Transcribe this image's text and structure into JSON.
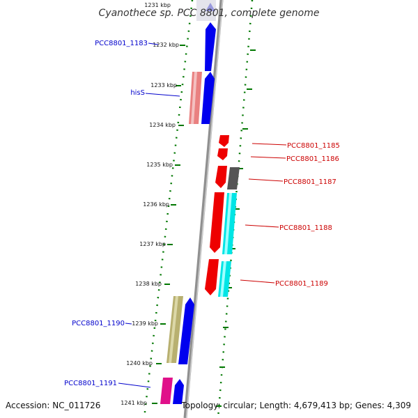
{
  "title": "Cyanothece sp. PCC 8801, complete genome",
  "accession": "Accession: NC_011726",
  "topology": "Topology: circular; Length: 4,679,413 bp; Genes: 4,309",
  "ticks": [
    "1231 kbp",
    "1232 kbp",
    "1233 kbp",
    "1234 kbp",
    "1235 kbp",
    "1236 kbp",
    "1237 kbp",
    "1238 kbp",
    "1239 kbp",
    "1240 kbp",
    "1241 kbp"
  ],
  "labels": {
    "pcc1183": "PCC8801_1183",
    "hiss": "hisS",
    "pcc1185": "PCC8801_1185",
    "pcc1186": "PCC8801_1186",
    "pcc1187": "PCC8801_1187",
    "pcc1188": "PCC8801_1188",
    "pcc1189": "PCC8801_1189",
    "pcc1190": "PCC8801_1190",
    "pcc1191": "PCC8801_1191"
  },
  "colors": {
    "forward_label": "#0000cc",
    "reverse_label": "#cc0000",
    "forward_gene": "#0000ee",
    "reverse_gene": "#ee0000",
    "cds_cyan": "#00e5e5",
    "cds_pink": "#e98080",
    "cds_khaki": "#b8b070",
    "cds_gray": "#555555",
    "cds_magenta": "#e0108a",
    "tick_green": "#007700"
  }
}
